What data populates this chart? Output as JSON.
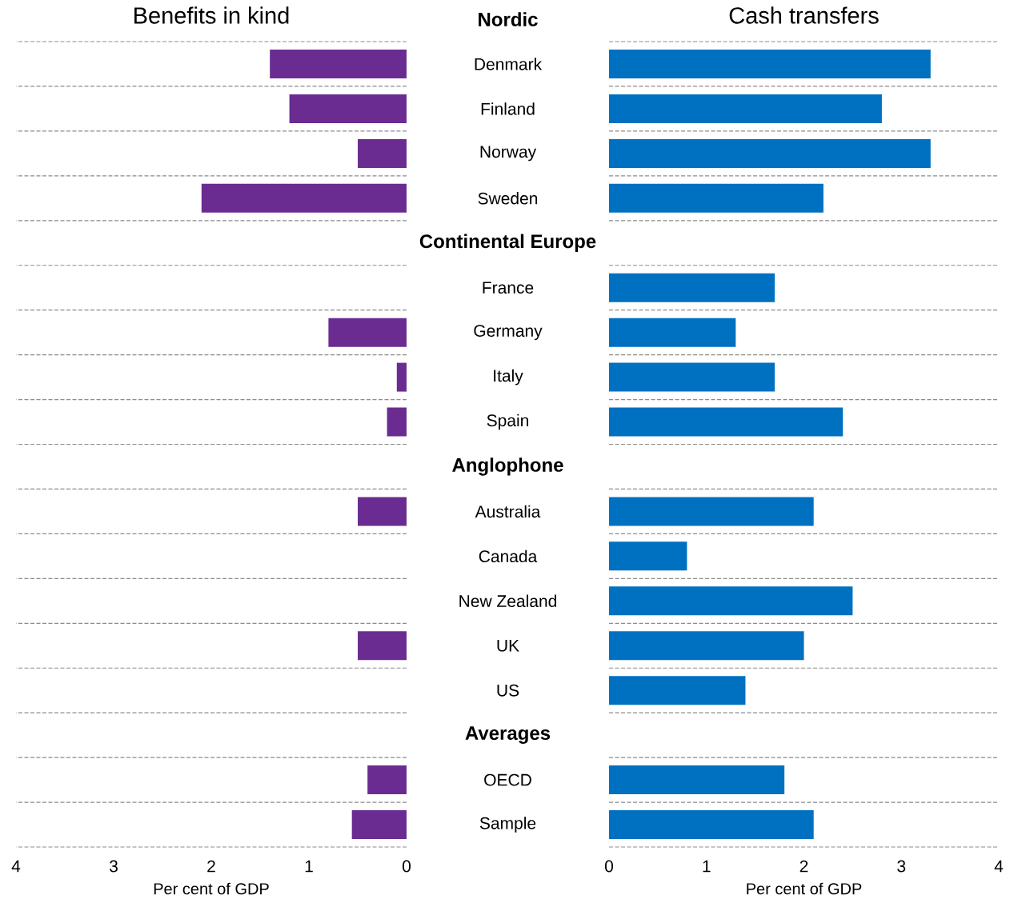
{
  "chart_data": [
    {
      "type": "bar",
      "orientation": "horizontal",
      "title": "Benefits in kind",
      "xlabel": "Per cent of GDP",
      "categories": [
        "Nordic",
        "Denmark",
        "Finland",
        "Norway",
        "Sweden",
        "Continental Europe",
        "France",
        "Germany",
        "Italy",
        "Spain",
        "Anglophone",
        "Australia",
        "Canada",
        "New Zealand",
        "UK",
        "US",
        "Averages",
        "OECD",
        "Sample"
      ],
      "values": [
        null,
        1.4,
        1.2,
        0.5,
        2.1,
        null,
        null,
        0.8,
        0.1,
        0.2,
        null,
        0.5,
        null,
        null,
        0.5,
        null,
        null,
        0.4,
        0.56
      ],
      "color": "#6a2c91",
      "xlim": [
        4,
        0
      ],
      "xticks": [
        4,
        3,
        2,
        1,
        0
      ],
      "grid": "y",
      "tick_labels": "x"
    },
    {
      "type": "bar",
      "orientation": "horizontal",
      "title": "Cash transfers",
      "xlabel": "Per cent of GDP",
      "categories": [
        "Nordic",
        "Denmark",
        "Finland",
        "Norway",
        "Sweden",
        "Continental Europe",
        "France",
        "Germany",
        "Italy",
        "Spain",
        "Anglophone",
        "Australia",
        "Canada",
        "New Zealand",
        "UK",
        "US",
        "Averages",
        "OECD",
        "Sample"
      ],
      "values": [
        null,
        3.3,
        2.8,
        3.3,
        2.2,
        null,
        1.7,
        1.3,
        1.7,
        2.4,
        null,
        2.1,
        0.8,
        2.5,
        2.0,
        1.4,
        null,
        1.8,
        2.1
      ],
      "color": "#0070c0",
      "xlim": [
        0,
        4
      ],
      "xticks": [
        0,
        1,
        2,
        3,
        4
      ],
      "grid": "y"
    }
  ]
}
